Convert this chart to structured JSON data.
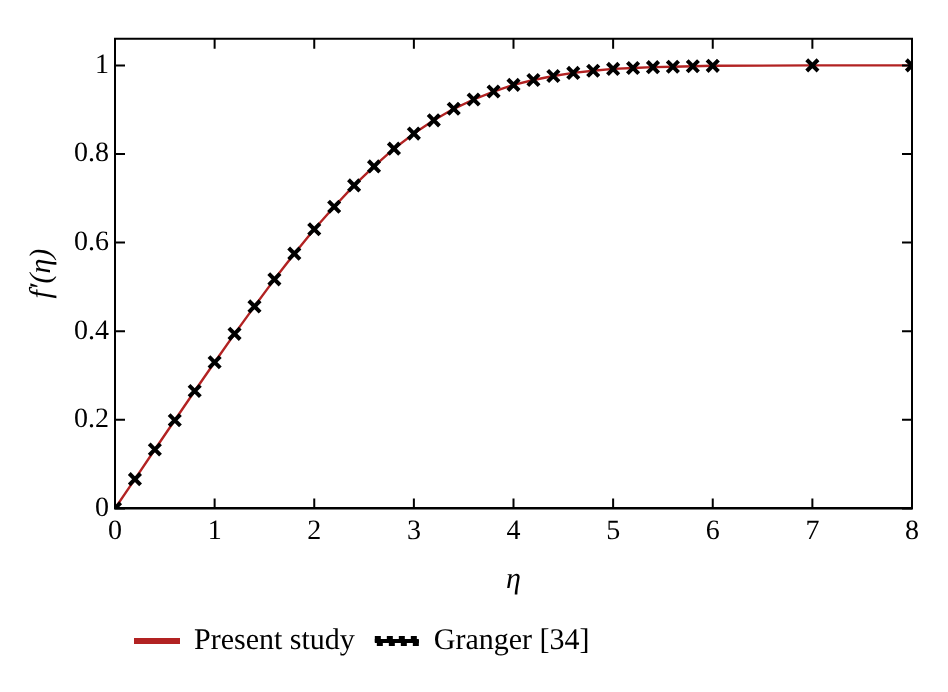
{
  "chart_data": {
    "type": "line",
    "xlabel": "η",
    "ylabel": "f′(η)",
    "xlim": [
      0,
      8
    ],
    "xticks": [
      0,
      1,
      2,
      3,
      4,
      5,
      6,
      7,
      8
    ],
    "ylim": [
      0,
      1.06
    ],
    "yticks": [
      0,
      0.2,
      0.4,
      0.6,
      0.8,
      1
    ],
    "legend": "bottom left",
    "series": [
      {
        "name": "Present study",
        "color": "#b22222",
        "marker": "none",
        "x": [
          0,
          0.2,
          0.4,
          0.6,
          0.8,
          1,
          1.2,
          1.4,
          1.6,
          1.8,
          2,
          2.2,
          2.4,
          2.6,
          2.8,
          3,
          3.2,
          3.4,
          3.6,
          3.8,
          4,
          4.2,
          4.4,
          4.6,
          4.8,
          5,
          5.2,
          5.4,
          5.6,
          5.8,
          6,
          7,
          8
        ],
        "values": [
          0,
          0.066,
          0.133,
          0.199,
          0.265,
          0.33,
          0.394,
          0.456,
          0.517,
          0.575,
          0.63,
          0.681,
          0.729,
          0.772,
          0.812,
          0.846,
          0.876,
          0.902,
          0.923,
          0.941,
          0.956,
          0.967,
          0.976,
          0.983,
          0.988,
          0.992,
          0.994,
          0.996,
          0.997,
          0.998,
          0.999,
          1,
          1
        ]
      },
      {
        "name": "Granger [34]",
        "type": "scatter",
        "color": "#000000",
        "marker": "cross",
        "x": [
          0,
          0.2,
          0.4,
          0.6,
          0.8,
          1,
          1.2,
          1.4,
          1.6,
          1.8,
          2,
          2.2,
          2.4,
          2.6,
          2.8,
          3,
          3.2,
          3.4,
          3.6,
          3.8,
          4,
          4.2,
          4.4,
          4.6,
          4.8,
          5,
          5.2,
          5.4,
          5.6,
          5.8,
          6,
          7,
          8
        ],
        "values": [
          0,
          0.066,
          0.133,
          0.199,
          0.265,
          0.33,
          0.394,
          0.456,
          0.517,
          0.575,
          0.63,
          0.681,
          0.729,
          0.772,
          0.812,
          0.846,
          0.876,
          0.902,
          0.923,
          0.941,
          0.956,
          0.967,
          0.976,
          0.983,
          0.988,
          0.992,
          0.994,
          0.996,
          0.997,
          0.998,
          0.999,
          1,
          1
        ]
      }
    ]
  }
}
